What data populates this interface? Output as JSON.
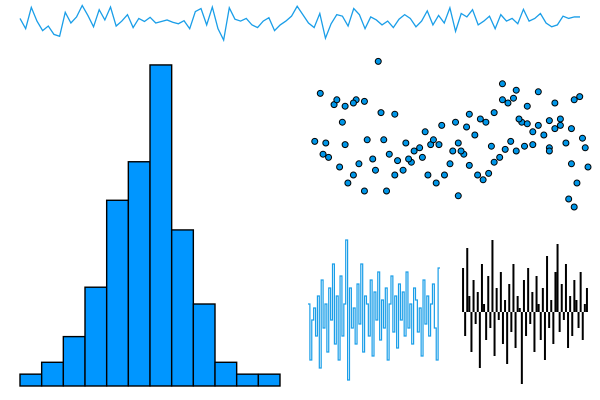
{
  "colors": {
    "accent": "#1a9ee8",
    "bar_fill": "#0096ff",
    "bar_edge": "#000000",
    "scatter_fill": "#0096e8",
    "scatter_edge": "#000000",
    "bar_series": "#000000",
    "background": "#ffffff"
  },
  "chart_data": [
    {
      "type": "line",
      "panel": "top-sparkline",
      "axes_visible": false,
      "grid": false,
      "ylim": [
        0,
        1
      ],
      "series": [
        {
          "values": [
            0.62,
            0.35,
            0.91,
            0.55,
            0.3,
            0.42,
            0.2,
            0.15,
            0.78,
            0.5,
            0.66,
            0.96,
            0.7,
            0.4,
            0.85,
            0.58,
            0.92,
            0.42,
            0.55,
            0.72,
            0.38,
            0.62,
            0.54,
            0.65,
            0.5,
            0.54,
            0.58,
            0.52,
            0.48,
            0.56,
            0.35,
            0.8,
            0.88,
            0.45,
            0.92,
            0.35,
            0.05,
            0.9,
            0.6,
            0.55,
            0.62,
            0.45,
            0.38,
            0.55,
            0.64,
            0.3,
            0.45,
            0.55,
            0.68,
            0.94,
            0.72,
            0.5,
            0.38,
            0.75,
            0.1,
            0.48,
            0.72,
            0.68,
            0.42,
            0.88,
            0.72,
            0.35,
            0.66,
            0.58,
            0.45,
            0.55,
            0.38,
            0.6,
            0.72,
            0.62,
            0.4,
            0.55,
            0.82,
            0.45,
            0.7,
            0.5,
            0.9,
            0.28,
            0.75,
            0.66,
            0.85,
            0.45,
            0.55,
            0.68,
            0.35,
            0.72,
            0.55,
            0.62,
            0.48,
            0.86,
            0.55,
            0.62,
            0.75,
            0.5,
            0.4,
            0.45,
            0.68,
            0.62,
            0.66,
            0.66
          ]
        }
      ]
    },
    {
      "type": "bar",
      "panel": "histogram",
      "axes_visible": false,
      "grid": false,
      "ylim": [
        0,
        330
      ],
      "values": [
        12,
        24,
        50,
        100,
        188,
        227,
        325,
        158,
        83,
        24,
        12,
        12
      ]
    },
    {
      "type": "scatter",
      "panel": "scatter",
      "axes_visible": false,
      "grid": false,
      "xlim": [
        0,
        1
      ],
      "ylim": [
        0,
        1
      ],
      "points": [
        [
          0.24,
          0.96
        ],
        [
          0.03,
          0.76
        ],
        [
          0.08,
          0.69
        ],
        [
          0.12,
          0.68
        ],
        [
          0.16,
          0.72
        ],
        [
          0.19,
          0.71
        ],
        [
          0.15,
          0.7
        ],
        [
          0.25,
          0.64
        ],
        [
          0.09,
          0.72
        ],
        [
          0.01,
          0.46
        ],
        [
          0.05,
          0.45
        ],
        [
          0.12,
          0.44
        ],
        [
          0.2,
          0.47
        ],
        [
          0.04,
          0.38
        ],
        [
          0.06,
          0.36
        ],
        [
          0.1,
          0.3
        ],
        [
          0.15,
          0.25
        ],
        [
          0.13,
          0.2
        ],
        [
          0.19,
          0.15
        ],
        [
          0.27,
          0.15
        ],
        [
          0.22,
          0.35
        ],
        [
          0.28,
          0.38
        ],
        [
          0.31,
          0.34
        ],
        [
          0.33,
          0.28
        ],
        [
          0.3,
          0.25
        ],
        [
          0.36,
          0.33
        ],
        [
          0.37,
          0.4
        ],
        [
          0.39,
          0.42
        ],
        [
          0.4,
          0.36
        ],
        [
          0.42,
          0.25
        ],
        [
          0.45,
          0.2
        ],
        [
          0.48,
          0.25
        ],
        [
          0.5,
          0.32
        ],
        [
          0.51,
          0.4
        ],
        [
          0.53,
          0.45
        ],
        [
          0.46,
          0.44
        ],
        [
          0.43,
          0.44
        ],
        [
          0.55,
          0.38
        ],
        [
          0.57,
          0.31
        ],
        [
          0.6,
          0.25
        ],
        [
          0.62,
          0.22
        ],
        [
          0.64,
          0.26
        ],
        [
          0.66,
          0.33
        ],
        [
          0.68,
          0.36
        ],
        [
          0.65,
          0.43
        ],
        [
          0.7,
          0.41
        ],
        [
          0.72,
          0.46
        ],
        [
          0.74,
          0.4
        ],
        [
          0.77,
          0.43
        ],
        [
          0.53,
          0.12
        ],
        [
          0.3,
          0.63
        ],
        [
          0.34,
          0.45
        ],
        [
          0.47,
          0.56
        ],
        [
          0.52,
          0.58
        ],
        [
          0.57,
          0.63
        ],
        [
          0.61,
          0.6
        ],
        [
          0.63,
          0.58
        ],
        [
          0.66,
          0.64
        ],
        [
          0.69,
          0.72
        ],
        [
          0.71,
          0.7
        ],
        [
          0.73,
          0.73
        ],
        [
          0.76,
          0.58
        ],
        [
          0.78,
          0.57
        ],
        [
          0.8,
          0.52
        ],
        [
          0.74,
          0.78
        ],
        [
          0.69,
          0.82
        ],
        [
          0.78,
          0.68
        ],
        [
          0.82,
          0.56
        ],
        [
          0.84,
          0.5
        ],
        [
          0.86,
          0.59
        ],
        [
          0.88,
          0.54
        ],
        [
          0.86,
          0.42
        ],
        [
          0.9,
          0.56
        ],
        [
          0.92,
          0.45
        ],
        [
          0.94,
          0.54
        ],
        [
          0.9,
          0.6
        ],
        [
          0.97,
          0.74
        ],
        [
          0.99,
          0.42
        ],
        [
          0.88,
          0.7
        ],
        [
          1.0,
          0.3
        ],
        [
          0.95,
          0.72
        ],
        [
          0.93,
          0.1
        ],
        [
          0.82,
          0.77
        ],
        [
          0.86,
          0.4
        ],
        [
          0.94,
          0.32
        ],
        [
          0.98,
          0.48
        ],
        [
          0.8,
          0.44
        ],
        [
          0.59,
          0.5
        ],
        [
          0.56,
          0.55
        ],
        [
          0.44,
          0.47
        ],
        [
          0.41,
          0.52
        ],
        [
          0.26,
          0.47
        ],
        [
          0.17,
          0.32
        ],
        [
          0.23,
          0.28
        ],
        [
          0.35,
          0.35
        ],
        [
          0.54,
          0.4
        ],
        [
          0.75,
          0.6
        ],
        [
          0.96,
          0.2
        ],
        [
          0.11,
          0.58
        ],
        [
          0.95,
          0.05
        ]
      ]
    },
    {
      "type": "line",
      "panel": "step-series",
      "axes_visible": false,
      "grid": false,
      "ylim": [
        -1,
        1
      ],
      "series": [
        {
          "values": [
            0.1,
            -0.6,
            -0.1,
            0.05,
            -0.3,
            0.2,
            -0.7,
            0.4,
            -0.2,
            0.1,
            -0.5,
            0.3,
            -0.1,
            0.6,
            -0.4,
            0.2,
            -0.6,
            0.45,
            -0.3,
            0.1,
            0.9,
            -0.85,
            0.3,
            -0.2,
            0.05,
            -0.4,
            0.35,
            -0.15,
            0.6,
            -0.5,
            0.2,
            0.1,
            -0.3,
            0.4,
            -0.55,
            0.25,
            -0.1,
            0.5,
            -0.35,
            0.15,
            -0.2,
            0.3,
            -0.6,
            0.1,
            0.45,
            -0.25,
            0.2,
            -0.45,
            0.35,
            -0.1,
            0.25,
            -0.3,
            0.5,
            -0.2,
            0.1,
            -0.4,
            0.3,
            0.15,
            -0.25,
            0.05,
            -0.55,
            0.4,
            -0.15,
            0.2,
            -0.3,
            0.1,
            0.35,
            -0.2,
            -0.6,
            0.55
          ]
        }
      ]
    },
    {
      "type": "bar",
      "panel": "vertical-bars",
      "axes_visible": false,
      "grid": false,
      "ylim": [
        -1,
        1
      ],
      "values": [
        0.55,
        -0.3,
        0.8,
        0.2,
        -0.5,
        0.4,
        -0.15,
        0.25,
        -0.7,
        0.6,
        0.1,
        -0.35,
        0.45,
        -0.2,
        0.9,
        -0.55,
        0.3,
        -0.1,
        0.5,
        -0.4,
        0.15,
        -0.65,
        0.35,
        -0.25,
        0.6,
        -0.45,
        0.2,
        0.05,
        -0.9,
        0.4,
        -0.3,
        0.55,
        -0.15,
        0.25,
        -0.5,
        0.45,
        0.1,
        -0.35,
        0.3,
        -0.6,
        0.7,
        -0.2,
        0.15,
        -0.4,
        0.5,
        0.85,
        -0.25,
        0.35,
        -0.1,
        0.6,
        -0.45,
        0.2,
        -0.3,
        0.4,
        0.15,
        -0.2,
        0.5,
        -0.35,
        0.1,
        0.3
      ]
    }
  ]
}
